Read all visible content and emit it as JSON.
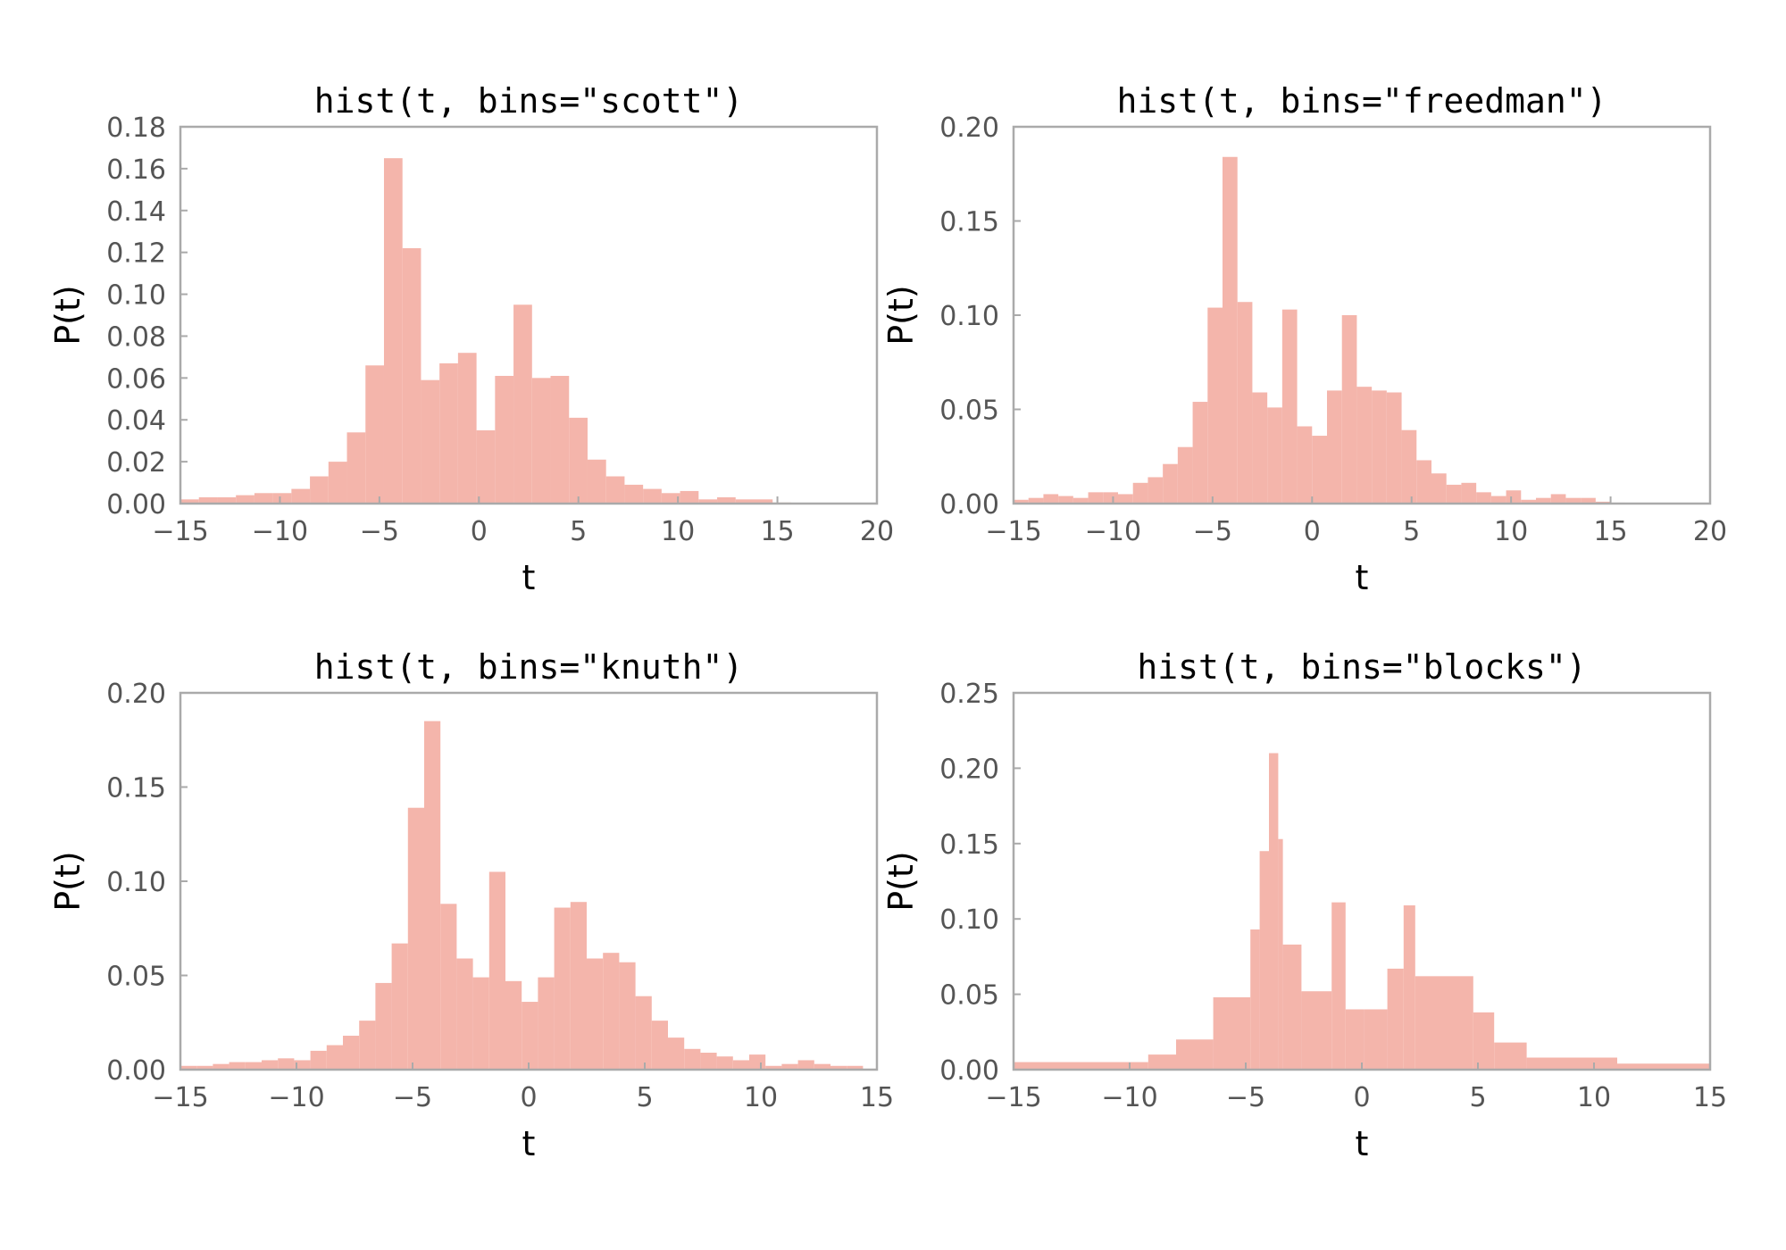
{
  "style": {
    "bar_color": "#f4b5ab",
    "frame_color": "#aaaaaa",
    "tick_label_color": "#555555"
  },
  "chart_data": [
    {
      "type": "bar",
      "title": "hist(t, bins=\"scott\")",
      "xlabel": "t",
      "ylabel": "P(t)",
      "xlim": [
        -15,
        20
      ],
      "ylim": [
        0,
        0.18
      ],
      "xticks": [
        -15,
        -10,
        -5,
        0,
        5,
        10,
        15,
        20
      ],
      "xtick_labels": [
        "−15",
        "−10",
        "−5",
        "0",
        "5",
        "10",
        "15",
        "20"
      ],
      "yticks": [
        0,
        0.02,
        0.04,
        0.06,
        0.08,
        0.1,
        0.12,
        0.14,
        0.16,
        0.18
      ],
      "ytick_labels": [
        "0.00",
        "0.02",
        "0.04",
        "0.06",
        "0.08",
        "0.10",
        "0.12",
        "0.14",
        "0.16",
        "0.18"
      ],
      "grid": false,
      "bin_edges": [
        -15,
        -14.07,
        -13.14,
        -12.21,
        -11.28,
        -10.35,
        -9.42,
        -8.49,
        -7.56,
        -6.63,
        -5.7,
        -4.77,
        -3.84,
        -2.91,
        -1.98,
        -1.05,
        -0.12,
        0.81,
        1.74,
        2.67,
        3.6,
        4.53,
        5.46,
        6.39,
        7.32,
        8.25,
        9.18,
        10.11,
        11.04,
        11.97,
        12.9,
        13.83,
        14.76,
        15.69
      ],
      "values": [
        0.002,
        0.003,
        0.003,
        0.004,
        0.005,
        0.005,
        0.007,
        0.013,
        0.02,
        0.034,
        0.066,
        0.165,
        0.122,
        0.059,
        0.067,
        0.072,
        0.035,
        0.061,
        0.095,
        0.06,
        0.061,
        0.041,
        0.021,
        0.013,
        0.009,
        0.007,
        0.005,
        0.006,
        0.002,
        0.003,
        0.002,
        0.002,
        0.0005
      ]
    },
    {
      "type": "bar",
      "title": "hist(t, bins=\"freedman\")",
      "xlabel": "t",
      "ylabel": "P(t)",
      "xlim": [
        -15,
        20
      ],
      "ylim": [
        0,
        0.2
      ],
      "xticks": [
        -15,
        -10,
        -5,
        0,
        5,
        10,
        15,
        20
      ],
      "xtick_labels": [
        "−15",
        "−10",
        "−5",
        "0",
        "5",
        "10",
        "15",
        "20"
      ],
      "yticks": [
        0,
        0.05,
        0.1,
        0.15,
        0.2
      ],
      "ytick_labels": [
        "0.00",
        "0.05",
        "0.10",
        "0.15",
        "0.20"
      ],
      "grid": false,
      "bin_edges": [
        -15,
        -14.25,
        -13.5,
        -12.75,
        -12,
        -11.25,
        -10.5,
        -9.75,
        -9,
        -8.25,
        -7.5,
        -6.75,
        -6,
        -5.25,
        -4.5,
        -3.75,
        -3,
        -2.25,
        -1.5,
        -0.75,
        0,
        0.75,
        1.5,
        2.25,
        3,
        3.75,
        4.5,
        5.25,
        6,
        6.75,
        7.5,
        8.25,
        9,
        9.75,
        10.5,
        11.25,
        12,
        12.75,
        13.5,
        14.25,
        15,
        15.75
      ],
      "values": [
        0.002,
        0.003,
        0.005,
        0.004,
        0.003,
        0.006,
        0.006,
        0.005,
        0.011,
        0.014,
        0.021,
        0.03,
        0.054,
        0.104,
        0.184,
        0.107,
        0.059,
        0.051,
        0.103,
        0.041,
        0.036,
        0.06,
        0.1,
        0.062,
        0.06,
        0.059,
        0.039,
        0.023,
        0.016,
        0.01,
        0.011,
        0.006,
        0.004,
        0.007,
        0.002,
        0.003,
        0.005,
        0.003,
        0.003,
        0.001,
        0.0005
      ]
    },
    {
      "type": "bar",
      "title": "hist(t, bins=\"knuth\")",
      "xlabel": "t",
      "ylabel": "P(t)",
      "xlim": [
        -15,
        15
      ],
      "ylim": [
        0,
        0.2
      ],
      "xticks": [
        -15,
        -10,
        -5,
        0,
        5,
        10,
        15
      ],
      "xtick_labels": [
        "−15",
        "−10",
        "−5",
        "0",
        "5",
        "10",
        "15"
      ],
      "yticks": [
        0,
        0.05,
        0.1,
        0.15,
        0.2
      ],
      "ytick_labels": [
        "0.00",
        "0.05",
        "0.10",
        "0.15",
        "0.20"
      ],
      "grid": false,
      "bin_edges": [
        -15,
        -14.3,
        -13.6,
        -12.9,
        -12.2,
        -11.5,
        -10.8,
        -10.1,
        -9.4,
        -8.7,
        -8.0,
        -7.3,
        -6.6,
        -5.9,
        -5.2,
        -4.5,
        -3.8,
        -3.1,
        -2.4,
        -1.7,
        -1.0,
        -0.3,
        0.4,
        1.1,
        1.8,
        2.5,
        3.2,
        3.9,
        4.6,
        5.3,
        6.0,
        6.7,
        7.4,
        8.1,
        8.8,
        9.5,
        10.2,
        10.9,
        11.6,
        12.3,
        13.0,
        13.7,
        14.4,
        15.1
      ],
      "values": [
        0.002,
        0.002,
        0.003,
        0.004,
        0.004,
        0.005,
        0.006,
        0.005,
        0.01,
        0.013,
        0.018,
        0.026,
        0.046,
        0.067,
        0.139,
        0.185,
        0.088,
        0.059,
        0.049,
        0.105,
        0.047,
        0.036,
        0.049,
        0.086,
        0.089,
        0.059,
        0.062,
        0.057,
        0.039,
        0.026,
        0.017,
        0.011,
        0.009,
        0.007,
        0.005,
        0.008,
        0.002,
        0.003,
        0.005,
        0.003,
        0.002,
        0.002,
        0.0005
      ]
    },
    {
      "type": "bar",
      "title": "hist(t, bins=\"blocks\")",
      "xlabel": "t",
      "ylabel": "P(t)",
      "xlim": [
        -15,
        15
      ],
      "ylim": [
        0,
        0.25
      ],
      "xticks": [
        -15,
        -10,
        -5,
        0,
        5,
        10,
        15
      ],
      "xtick_labels": [
        "−15",
        "−10",
        "−5",
        "0",
        "5",
        "10",
        "15"
      ],
      "yticks": [
        0,
        0.05,
        0.1,
        0.15,
        0.2,
        0.25
      ],
      "ytick_labels": [
        "0.00",
        "0.05",
        "0.10",
        "0.15",
        "0.20",
        "0.25"
      ],
      "grid": false,
      "bin_edges": [
        -15,
        -9.2,
        -8.0,
        -6.4,
        -4.8,
        -4.4,
        -4.0,
        -3.6,
        -3.4,
        -2.6,
        -1.3,
        -0.7,
        0.1,
        1.1,
        1.8,
        2.3,
        4.8,
        5.7,
        7.1,
        11.0,
        15.0
      ],
      "values": [
        0.005,
        0.01,
        0.02,
        0.048,
        0.093,
        0.145,
        0.21,
        0.153,
        0.083,
        0.052,
        0.111,
        0.04,
        0.04,
        0.067,
        0.109,
        0.062,
        0.038,
        0.018,
        0.008,
        0.004
      ]
    }
  ]
}
